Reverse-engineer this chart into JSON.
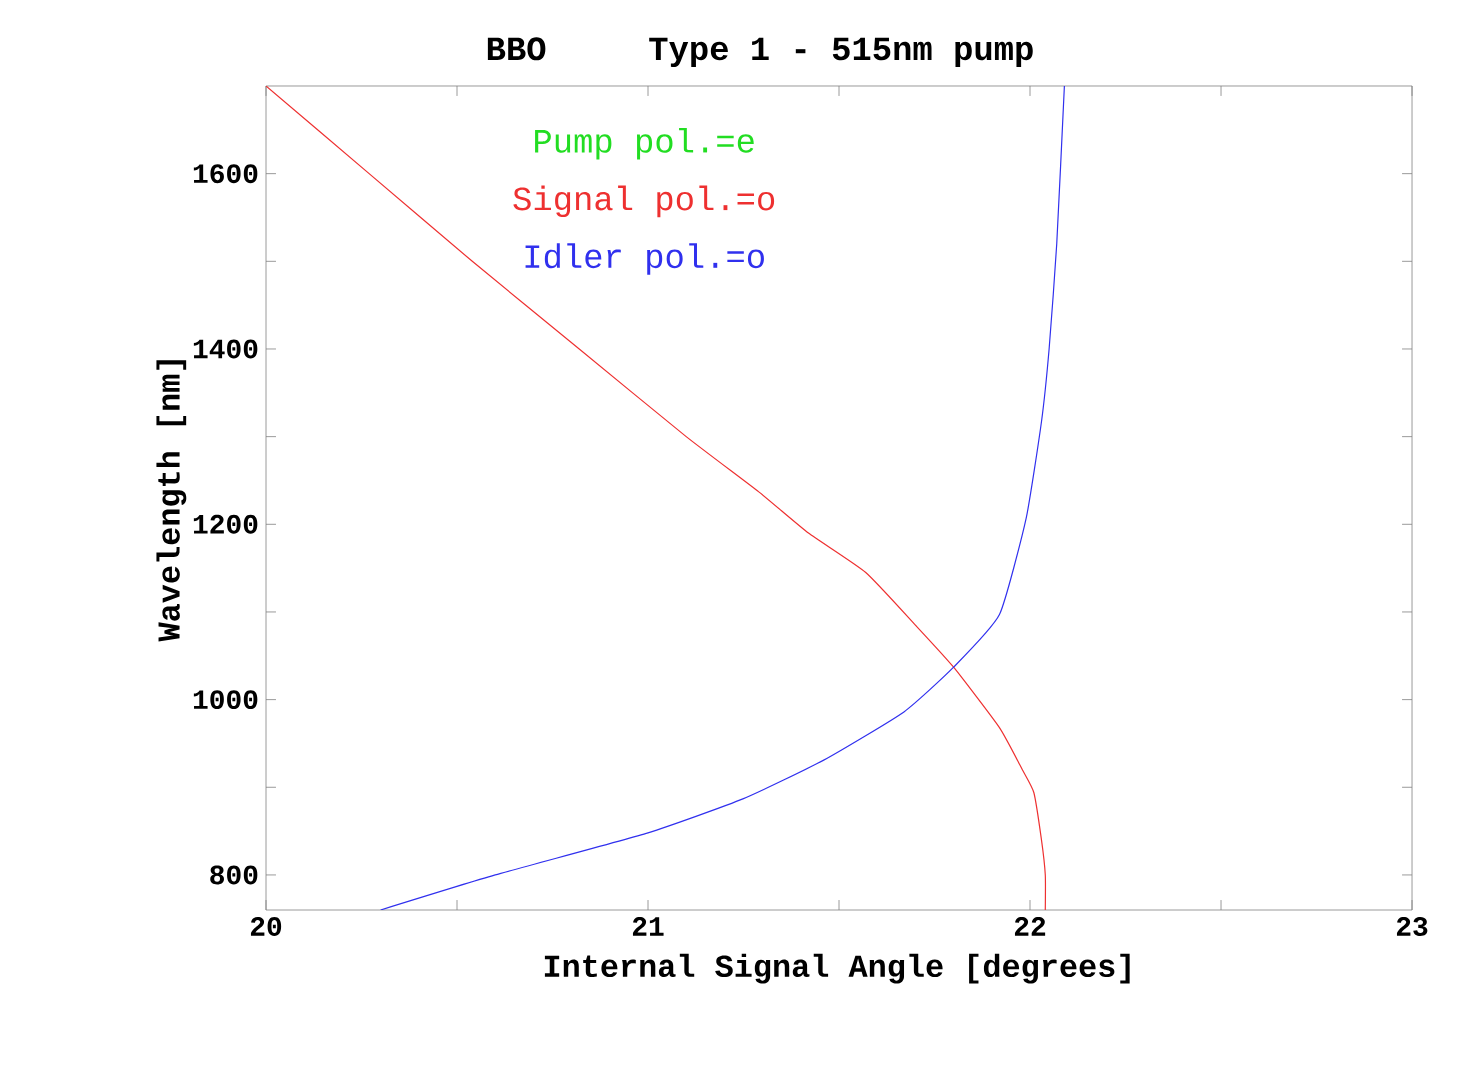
{
  "chart_data": {
    "type": "line",
    "title": "BBO",
    "subtitle": "Type 1 - 515nm pump",
    "xlabel": "Internal Signal Angle [degrees]",
    "ylabel": "Wavelength [nm]",
    "annotations": [
      "Pump pol.=e"
    ],
    "xlim": [
      20,
      23
    ],
    "ylim": [
      760,
      1700
    ],
    "xticks": [
      20,
      {
        "value": 20.5,
        "label": null
      },
      21,
      {
        "value": 21.5,
        "label": null
      },
      22,
      {
        "value": 22.5,
        "label": null
      },
      23
    ],
    "yticks": [
      800,
      {
        "value": 900,
        "label": null
      },
      1000,
      {
        "value": 1100,
        "label": null
      },
      1200,
      {
        "value": 1300,
        "label": null
      },
      1400,
      {
        "value": 1500,
        "label": null
      },
      1600
    ],
    "grid": false,
    "marker": "none",
    "line_style": "solid",
    "series": [
      {
        "name": "Signal pol.=o",
        "color": "#ee3030",
        "x": [
          20.0,
          20.27,
          20.54,
          20.82,
          21.1,
          21.29,
          21.42,
          21.57,
          21.7,
          21.8,
          21.92,
          21.98,
          22.01,
          22.03,
          22.04,
          22.04
        ],
        "values": [
          1700,
          1600,
          1500,
          1400,
          1300,
          1237,
          1190,
          1145,
          1085,
          1037,
          968,
          920,
          894,
          840,
          800,
          760
        ]
      },
      {
        "name": "Idler pol.=o",
        "color": "#3030ee",
        "x": [
          20.3,
          20.6,
          21.0,
          21.25,
          21.46,
          21.67,
          21.8,
          21.92,
          21.99,
          22.03,
          22.05,
          22.07,
          22.09
        ],
        "values": [
          760,
          800,
          848,
          887,
          931,
          986,
          1037,
          1097,
          1207,
          1317,
          1400,
          1520,
          1700
        ]
      }
    ]
  }
}
